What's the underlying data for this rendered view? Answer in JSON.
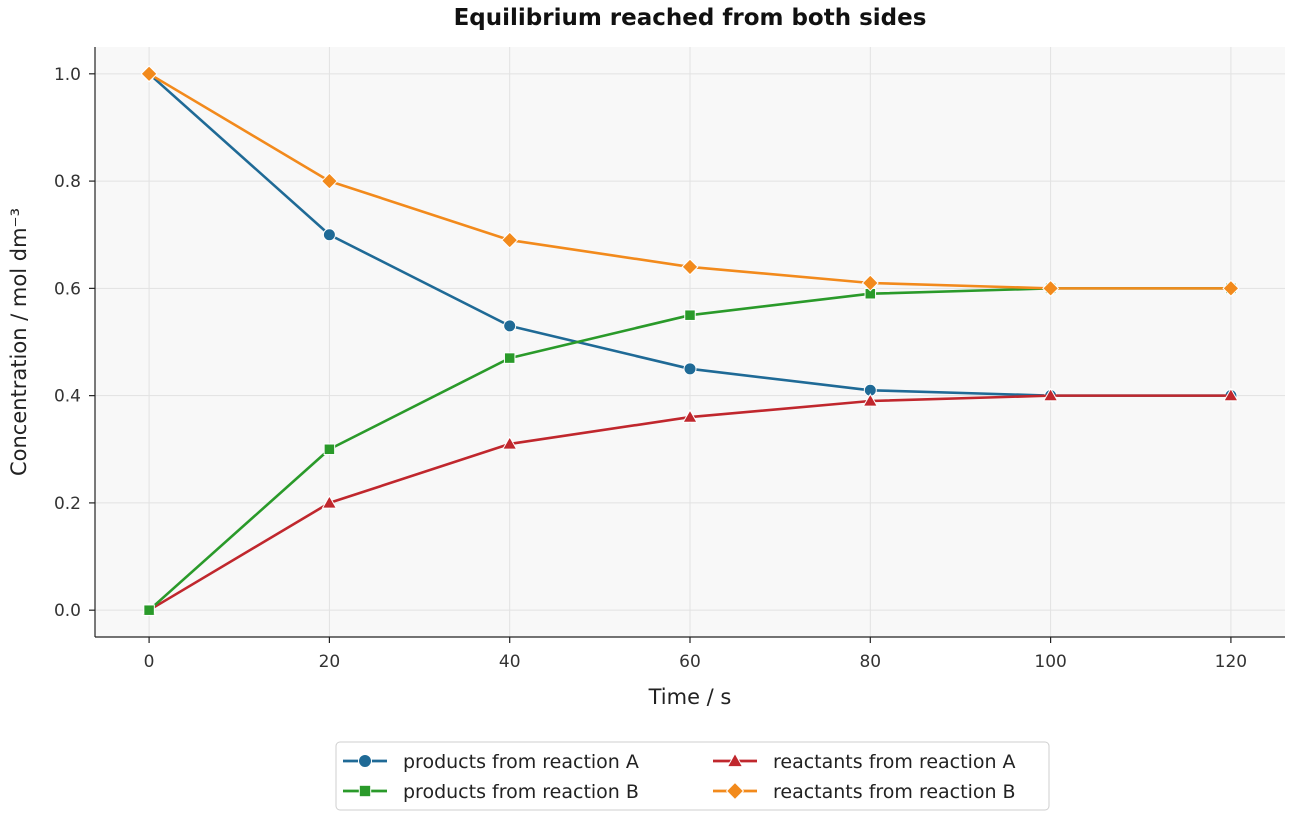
{
  "chart_data": {
    "type": "line",
    "title": "Equilibrium reached from both sides",
    "xlabel": "Time / s",
    "ylabel": "Concentration / mol dm⁻³",
    "x": [
      0,
      20,
      40,
      60,
      80,
      100,
      120
    ],
    "xlim": [
      -6,
      126
    ],
    "ylim": [
      -0.05,
      1.05
    ],
    "xticks": [
      0,
      20,
      40,
      60,
      80,
      100,
      120
    ],
    "yticks": [
      0.0,
      0.2,
      0.4,
      0.6,
      0.8,
      1.0
    ],
    "xtick_labels": [
      "0",
      "20",
      "40",
      "60",
      "80",
      "100",
      "120"
    ],
    "ytick_labels": [
      "0.0",
      "0.2",
      "0.4",
      "0.6",
      "0.8",
      "1.0"
    ],
    "grid": true,
    "legend_placement": "bottom-center",
    "series": [
      {
        "name": "products from reaction A",
        "color": "#1f6a96",
        "marker": "circle",
        "values": [
          1.0,
          0.7,
          0.53,
          0.45,
          0.41,
          0.4,
          0.4
        ]
      },
      {
        "name": "reactants from reaction A",
        "color": "#c0272d",
        "marker": "triangle",
        "values": [
          0.0,
          0.2,
          0.31,
          0.36,
          0.39,
          0.4,
          0.4
        ]
      },
      {
        "name": "products from reaction B",
        "color": "#2a9a2a",
        "marker": "square",
        "values": [
          0.0,
          0.3,
          0.47,
          0.55,
          0.59,
          0.6,
          0.6
        ]
      },
      {
        "name": "reactants from reaction B",
        "color": "#f28a1c",
        "marker": "diamond",
        "values": [
          1.0,
          0.8,
          0.69,
          0.64,
          0.61,
          0.6,
          0.6
        ]
      }
    ],
    "legend_order": [
      0,
      2,
      1,
      3
    ]
  }
}
